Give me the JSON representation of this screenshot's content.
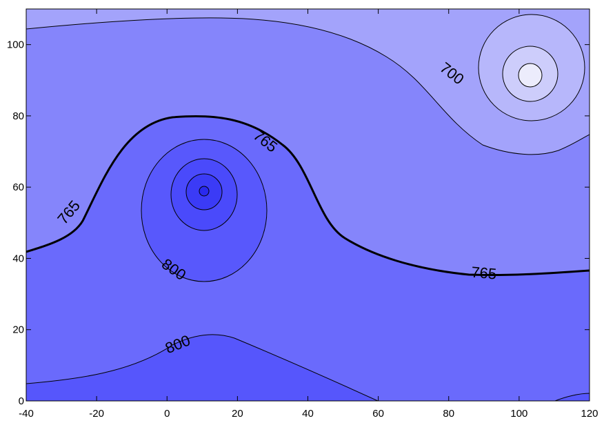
{
  "chart_data": {
    "type": "contour",
    "title": "",
    "xlabel": "",
    "ylabel": "",
    "xlim": [
      -40,
      120
    ],
    "ylim": [
      0,
      110
    ],
    "x_ticks": [
      -40,
      -20,
      0,
      20,
      40,
      60,
      80,
      100,
      120
    ],
    "y_ticks": [
      0,
      20,
      40,
      60,
      80,
      100
    ],
    "x_tick_labels": [
      "-40",
      "-20",
      "0",
      "20",
      "40",
      "60",
      "80",
      "100",
      "120"
    ],
    "y_tick_labels": [
      "0",
      "20",
      "40",
      "60",
      "80",
      "100"
    ],
    "grid": false,
    "contour_labels": [
      {
        "text": "700",
        "level": 700,
        "x": 81,
        "y": 92,
        "angle": 38
      },
      {
        "text": "765",
        "level": 765,
        "x": 28,
        "y": 73,
        "angle": 38
      },
      {
        "text": "765",
        "level": 765,
        "x": -28,
        "y": 53,
        "angle": -50
      },
      {
        "text": "765",
        "level": 765,
        "x": 90,
        "y": 36,
        "angle": 5
      },
      {
        "text": "800",
        "level": 800,
        "x": 2,
        "y": 37,
        "angle": 35
      },
      {
        "text": "800",
        "level": 800,
        "x": 3,
        "y": 16,
        "angle": -22
      }
    ],
    "features": [
      {
        "kind": "high",
        "x": 10,
        "y": 59
      },
      {
        "kind": "low",
        "x": 103,
        "y": 92
      }
    ],
    "colors": {
      "darkest": "#3535f5",
      "dark": "#4848fb",
      "mid": "#5656fc",
      "light": "#6a6afc",
      "lighter": "#7e7efc",
      "pale": "#9090fa",
      "paler": "#a6a6fb",
      "palest": "#c4c4fb",
      "white_center": "#e9e9fc"
    }
  }
}
